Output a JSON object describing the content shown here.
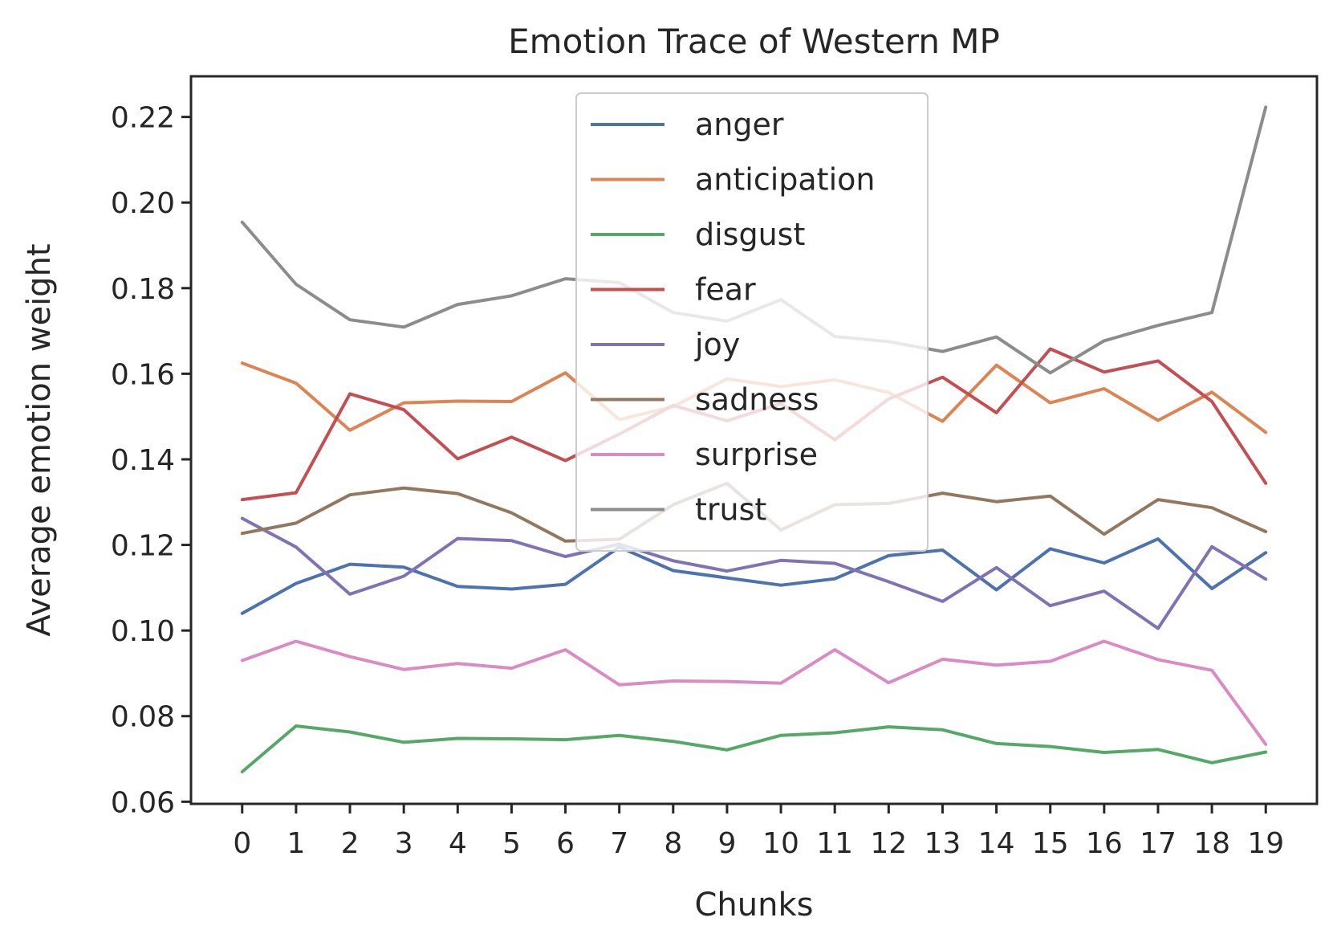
{
  "chart_data": {
    "type": "line",
    "title": "Emotion Trace of Western MP",
    "xlabel": "Chunks",
    "ylabel": "Average emotion weight",
    "xlim": [
      -0.95,
      19.95
    ],
    "ylim": [
      0.0595,
      0.2295
    ],
    "x": [
      0,
      1,
      2,
      3,
      4,
      5,
      6,
      7,
      8,
      9,
      10,
      11,
      12,
      13,
      14,
      15,
      16,
      17,
      18,
      19
    ],
    "x_tick_labels": [
      "0",
      "1",
      "2",
      "3",
      "4",
      "5",
      "6",
      "7",
      "8",
      "9",
      "10",
      "11",
      "12",
      "13",
      "14",
      "15",
      "16",
      "17",
      "18",
      "19"
    ],
    "y_ticks": [
      0.06,
      0.08,
      0.1,
      0.12,
      0.14,
      0.16,
      0.18,
      0.2,
      0.22
    ],
    "y_tick_labels": [
      "0.06",
      "0.08",
      "0.10",
      "0.12",
      "0.14",
      "0.16",
      "0.18",
      "0.20",
      "0.22"
    ],
    "grid": false,
    "legend_position": "upper center",
    "series": [
      {
        "name": "anger",
        "color": "#4c72b0",
        "values": [
          0.104,
          0.111,
          0.1155,
          0.1148,
          0.1103,
          0.1097,
          0.1108,
          0.1195,
          0.114,
          0.1123,
          0.1106,
          0.1121,
          0.1175,
          0.1188,
          0.1095,
          0.1191,
          0.1158,
          0.1214,
          0.1098,
          0.1182
        ]
      },
      {
        "name": "anticipation",
        "color": "#dd8452",
        "values": [
          0.1625,
          0.1578,
          0.1468,
          0.1532,
          0.1536,
          0.1535,
          0.1602,
          0.1493,
          0.1523,
          0.1588,
          0.157,
          0.1586,
          0.1556,
          0.1489,
          0.162,
          0.1532,
          0.1565,
          0.1491,
          0.1557,
          0.1463
        ]
      },
      {
        "name": "disgust",
        "color": "#55a868",
        "values": [
          0.067,
          0.0777,
          0.0763,
          0.0739,
          0.0748,
          0.0747,
          0.0745,
          0.0755,
          0.0741,
          0.0721,
          0.0755,
          0.0761,
          0.0775,
          0.0768,
          0.0736,
          0.0729,
          0.0715,
          0.0722,
          0.0691,
          0.0716
        ]
      },
      {
        "name": "fear",
        "color": "#c44e52",
        "values": [
          0.1306,
          0.1322,
          0.1553,
          0.1516,
          0.1401,
          0.1452,
          0.1397,
          0.1459,
          0.1526,
          0.149,
          0.153,
          0.1446,
          0.1541,
          0.1592,
          0.1509,
          0.1658,
          0.1604,
          0.163,
          0.1535,
          0.1344
        ]
      },
      {
        "name": "joy",
        "color": "#8172b3",
        "values": [
          0.1262,
          0.1195,
          0.1085,
          0.1127,
          0.1215,
          0.121,
          0.1173,
          0.1202,
          0.1163,
          0.1139,
          0.1164,
          0.1157,
          0.1114,
          0.1068,
          0.1147,
          0.1058,
          0.1092,
          0.1005,
          0.1196,
          0.112
        ]
      },
      {
        "name": "sadness",
        "color": "#937860",
        "values": [
          0.1227,
          0.1251,
          0.1317,
          0.1333,
          0.132,
          0.1275,
          0.1209,
          0.1213,
          0.1294,
          0.1344,
          0.1235,
          0.1294,
          0.1297,
          0.1321,
          0.1301,
          0.1314,
          0.1225,
          0.1306,
          0.1287,
          0.1231
        ]
      },
      {
        "name": "surprise",
        "color": "#da8bc3",
        "values": [
          0.093,
          0.0975,
          0.0939,
          0.0909,
          0.0923,
          0.0912,
          0.0955,
          0.0873,
          0.0882,
          0.0881,
          0.0877,
          0.0955,
          0.0878,
          0.0933,
          0.0919,
          0.0928,
          0.0975,
          0.0932,
          0.0907,
          0.0734
        ]
      },
      {
        "name": "trust",
        "color": "#8c8c8c",
        "values": [
          0.1954,
          0.1809,
          0.1726,
          0.1709,
          0.1762,
          0.1782,
          0.1822,
          0.1813,
          0.1743,
          0.1723,
          0.1773,
          0.1687,
          0.1675,
          0.1652,
          0.1686,
          0.1602,
          0.1677,
          0.1713,
          0.1743,
          0.2223
        ]
      }
    ]
  }
}
